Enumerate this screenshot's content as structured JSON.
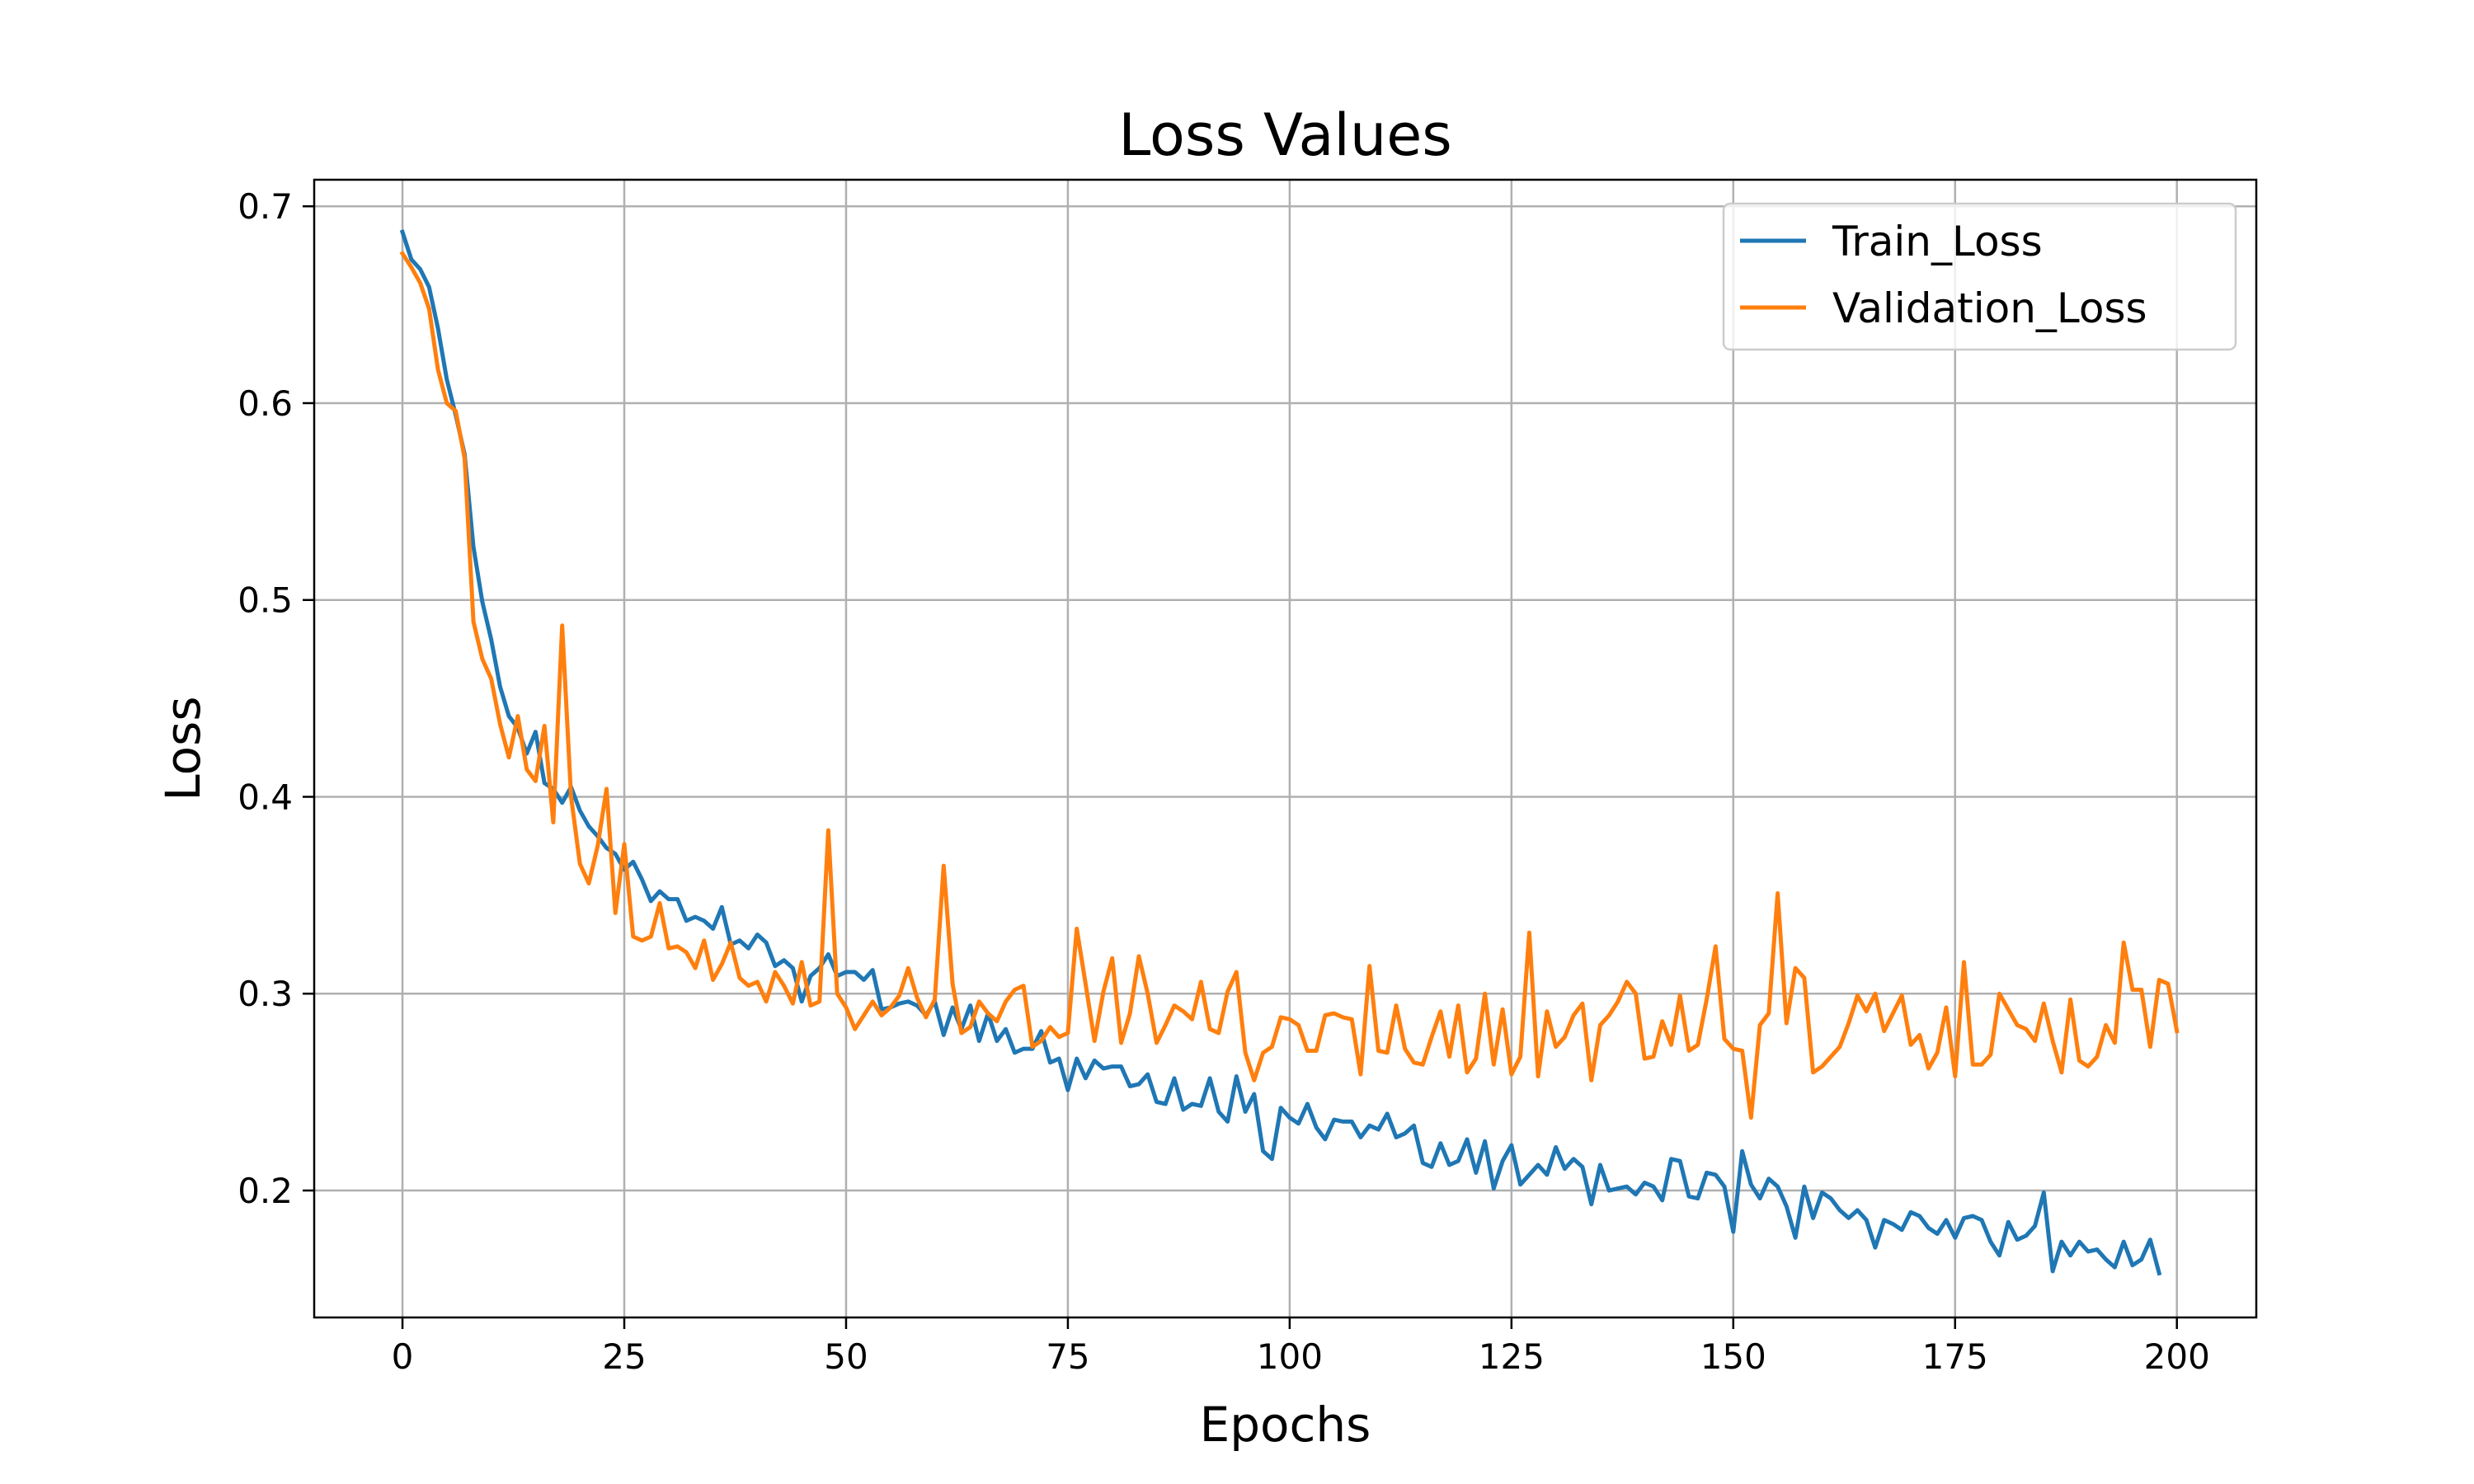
{
  "chart_data": {
    "type": "line",
    "title": "Loss Values",
    "xlabel": "Epochs",
    "ylabel": "Loss",
    "xlim": [
      -9.95,
      208.95
    ],
    "ylim": [
      0.1355,
      0.7135
    ],
    "xticks": [
      0,
      25,
      50,
      75,
      100,
      125,
      150,
      175,
      200
    ],
    "yticks": [
      0.2,
      0.3,
      0.4,
      0.5,
      0.6,
      0.7
    ],
    "xtick_labels": [
      "0",
      "25",
      "50",
      "75",
      "100",
      "125",
      "150",
      "175",
      "200"
    ],
    "ytick_labels": [
      "0.2",
      "0.3",
      "0.4",
      "0.5",
      "0.6",
      "0.7"
    ],
    "grid": true,
    "legend_position": "top-right",
    "series": [
      {
        "name": "Train_Loss",
        "color": "#1f77b4",
        "values": [
          0.687,
          0.673,
          0.668,
          0.659,
          0.638,
          0.612,
          0.594,
          0.574,
          0.527,
          0.499,
          0.48,
          0.456,
          0.441,
          0.435,
          0.422,
          0.433,
          0.407,
          0.404,
          0.397,
          0.405,
          0.393,
          0.385,
          0.38,
          0.374,
          0.371,
          0.363,
          0.367,
          0.358,
          0.347,
          0.352,
          0.348,
          0.348,
          0.337,
          0.339,
          0.337,
          0.333,
          0.344,
          0.325,
          0.327,
          0.323,
          0.33,
          0.326,
          0.314,
          0.317,
          0.313,
          0.296,
          0.309,
          0.313,
          0.32,
          0.309,
          0.311,
          0.311,
          0.307,
          0.312,
          0.292,
          0.293,
          0.295,
          0.296,
          0.294,
          0.289,
          0.296,
          0.279,
          0.293,
          0.282,
          0.294,
          0.276,
          0.29,
          0.276,
          0.282,
          0.27,
          0.272,
          0.272,
          0.281,
          0.265,
          0.267,
          0.251,
          0.267,
          0.257,
          0.266,
          0.262,
          0.263,
          0.263,
          0.253,
          0.254,
          0.259,
          0.245,
          0.244,
          0.257,
          0.241,
          0.244,
          0.243,
          0.257,
          0.24,
          0.235,
          0.258,
          0.24,
          0.249,
          0.22,
          0.216,
          0.242,
          0.237,
          0.234,
          0.244,
          0.232,
          0.226,
          0.236,
          0.235,
          0.235,
          0.227,
          0.233,
          0.231,
          0.239,
          0.227,
          0.229,
          0.233,
          0.214,
          0.212,
          0.224,
          0.213,
          0.215,
          0.226,
          0.209,
          0.225,
          0.201,
          0.215,
          0.223,
          0.203,
          0.208,
          0.213,
          0.208,
          0.222,
          0.211,
          0.216,
          0.212,
          0.193,
          0.213,
          0.2,
          0.201,
          0.202,
          0.198,
          0.204,
          0.202,
          0.195,
          0.216,
          0.215,
          0.197,
          0.196,
          0.209,
          0.208,
          0.202,
          0.179,
          0.22,
          0.203,
          0.196,
          0.206,
          0.202,
          0.192,
          0.176,
          0.202,
          0.186,
          0.199,
          0.196,
          0.19,
          0.186,
          0.19,
          0.185,
          0.171,
          0.185,
          0.183,
          0.18,
          0.189,
          0.187,
          0.181,
          0.178,
          0.185,
          0.176,
          0.186,
          0.187,
          0.185,
          0.174,
          0.167,
          0.184,
          0.175,
          0.177,
          0.182,
          0.199,
          0.159,
          0.174,
          0.167,
          0.174,
          0.169,
          0.17,
          0.165,
          0.161,
          0.174,
          0.162,
          0.165,
          0.175,
          0.158
        ]
      },
      {
        "name": "Validation_Loss",
        "color": "#ff7f0e",
        "values": [
          0.676,
          0.669,
          0.661,
          0.648,
          0.617,
          0.6,
          0.596,
          0.572,
          0.489,
          0.47,
          0.46,
          0.437,
          0.42,
          0.441,
          0.414,
          0.408,
          0.436,
          0.387,
          0.487,
          0.4,
          0.366,
          0.356,
          0.375,
          0.404,
          0.341,
          0.376,
          0.329,
          0.327,
          0.329,
          0.346,
          0.323,
          0.324,
          0.321,
          0.313,
          0.327,
          0.307,
          0.315,
          0.326,
          0.308,
          0.304,
          0.306,
          0.296,
          0.311,
          0.304,
          0.295,
          0.316,
          0.294,
          0.296,
          0.383,
          0.3,
          0.293,
          0.282,
          0.289,
          0.296,
          0.289,
          0.293,
          0.299,
          0.313,
          0.298,
          0.288,
          0.297,
          0.365,
          0.305,
          0.28,
          0.283,
          0.296,
          0.29,
          0.286,
          0.296,
          0.302,
          0.304,
          0.273,
          0.276,
          0.283,
          0.278,
          0.28,
          0.333,
          0.305,
          0.276,
          0.301,
          0.318,
          0.275,
          0.29,
          0.319,
          0.3,
          0.275,
          0.284,
          0.294,
          0.291,
          0.287,
          0.306,
          0.282,
          0.28,
          0.301,
          0.311,
          0.27,
          0.256,
          0.27,
          0.273,
          0.288,
          0.287,
          0.284,
          0.271,
          0.271,
          0.289,
          0.29,
          0.288,
          0.287,
          0.259,
          0.314,
          0.271,
          0.27,
          0.294,
          0.272,
          0.265,
          0.264,
          0.278,
          0.291,
          0.268,
          0.294,
          0.26,
          0.267,
          0.3,
          0.264,
          0.292,
          0.259,
          0.268,
          0.331,
          0.258,
          0.291,
          0.273,
          0.278,
          0.289,
          0.295,
          0.256,
          0.284,
          0.289,
          0.296,
          0.306,
          0.3,
          0.267,
          0.268,
          0.286,
          0.274,
          0.299,
          0.271,
          0.274,
          0.297,
          0.324,
          0.277,
          0.272,
          0.271,
          0.237,
          0.284,
          0.29,
          0.351,
          0.285,
          0.313,
          0.308,
          0.26,
          0.263,
          0.268,
          0.273,
          0.285,
          0.299,
          0.291,
          0.3,
          0.281,
          0.29,
          0.299,
          0.274,
          0.279,
          0.262,
          0.27,
          0.293,
          0.258,
          0.316,
          0.264,
          0.264,
          0.269,
          0.3,
          0.292,
          0.284,
          0.282,
          0.276,
          0.295,
          0.276,
          0.26,
          0.297,
          0.266,
          0.263,
          0.268,
          0.284,
          0.275,
          0.326,
          0.302,
          0.302,
          0.273,
          0.307,
          0.305,
          0.281
        ]
      }
    ]
  }
}
